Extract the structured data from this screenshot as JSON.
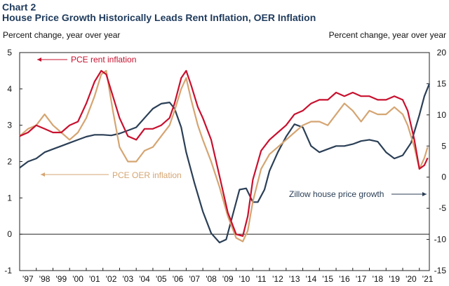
{
  "chart_title": "Chart 2",
  "chart_subtitle": "House Price Growth Historically Leads Rent Inflation, OER Inflation",
  "left_unit": "Percent change,  year over year",
  "right_unit": "Percent change,  year over year",
  "colors": {
    "title": "#1f3b5c",
    "rent": "#c8102e",
    "oer": "#d5a572",
    "zillow": "#2b3f56"
  },
  "chart_data": {
    "type": "line",
    "x_tick_labels": [
      "'97",
      "'98",
      "'99",
      "'00",
      "'01",
      "'02",
      "'03",
      "'04",
      "'05",
      "'06",
      "'07",
      "'08",
      "'09",
      "'10",
      "'11",
      "'12",
      "'13",
      "'14",
      "'15",
      "'16",
      "'17",
      "'18",
      "'19",
      "'20",
      "'21"
    ],
    "xlim": [
      1997,
      2021.6
    ],
    "left_axis": {
      "ylim": [
        -1,
        5
      ],
      "ticks": [
        -1,
        0,
        1,
        2,
        3,
        4,
        5
      ]
    },
    "right_axis": {
      "ylim": [
        -15,
        20
      ],
      "ticks": [
        -15,
        -10,
        -5,
        0,
        5,
        10,
        15,
        20
      ]
    },
    "annotations": [
      {
        "text": "PCE rent inflation",
        "series": "rent"
      },
      {
        "text": "PCE OER inflation",
        "series": "oer"
      },
      {
        "text": "Zillow house price growth",
        "series": "zillow"
      }
    ],
    "series": [
      {
        "key": "rent",
        "axis": "left",
        "x": [
          1997.0,
          1997.5,
          1998.0,
          1998.5,
          1999.0,
          1999.5,
          2000.0,
          2000.5,
          2001.0,
          2001.5,
          2001.9,
          2002.2,
          2002.6,
          2003.0,
          2003.5,
          2004.0,
          2004.5,
          2005.0,
          2005.5,
          2006.0,
          2006.3,
          2006.7,
          2007.0,
          2007.3,
          2007.7,
          2008.0,
          2008.5,
          2009.0,
          2009.5,
          2010.0,
          2010.4,
          2010.7,
          2011.0,
          2011.5,
          2012.0,
          2012.5,
          2013.0,
          2013.5,
          2014.0,
          2014.5,
          2015.0,
          2015.5,
          2016.0,
          2016.5,
          2017.0,
          2017.5,
          2018.0,
          2018.5,
          2019.0,
          2019.5,
          2020.0,
          2020.3,
          2020.7,
          2021.0,
          2021.3,
          2021.5
        ],
        "y": [
          2.7,
          2.8,
          3.0,
          2.9,
          2.8,
          2.8,
          3.0,
          3.1,
          3.6,
          4.2,
          4.5,
          4.4,
          3.8,
          3.2,
          2.7,
          2.6,
          2.9,
          2.9,
          3.0,
          3.2,
          3.6,
          4.3,
          4.5,
          4.1,
          3.5,
          3.2,
          2.6,
          1.6,
          0.6,
          0.0,
          -0.05,
          0.5,
          1.5,
          2.3,
          2.6,
          2.8,
          3.0,
          3.3,
          3.4,
          3.6,
          3.7,
          3.7,
          3.9,
          3.8,
          3.9,
          3.8,
          3.8,
          3.7,
          3.7,
          3.8,
          3.7,
          3.4,
          2.6,
          1.8,
          1.9,
          2.1
        ]
      },
      {
        "key": "oer",
        "axis": "left",
        "x": [
          1997.0,
          1997.5,
          1998.0,
          1998.5,
          1999.0,
          1999.5,
          2000.0,
          2000.5,
          2001.0,
          2001.5,
          2001.9,
          2002.2,
          2002.6,
          2003.0,
          2003.5,
          2004.0,
          2004.5,
          2005.0,
          2005.5,
          2006.0,
          2006.3,
          2006.7,
          2007.0,
          2007.3,
          2007.7,
          2008.0,
          2008.5,
          2009.0,
          2009.5,
          2010.0,
          2010.4,
          2010.7,
          2011.0,
          2011.5,
          2012.0,
          2012.5,
          2013.0,
          2013.5,
          2014.0,
          2014.5,
          2015.0,
          2015.5,
          2016.0,
          2016.5,
          2017.0,
          2017.5,
          2018.0,
          2018.5,
          2019.0,
          2019.5,
          2020.0,
          2020.3,
          2020.7,
          2021.0,
          2021.3,
          2021.5
        ],
        "y": [
          2.7,
          2.9,
          3.0,
          3.3,
          3.0,
          2.8,
          2.6,
          2.8,
          3.2,
          3.8,
          4.4,
          4.5,
          3.4,
          2.4,
          2.0,
          2.0,
          2.3,
          2.4,
          2.7,
          3.0,
          3.4,
          4.0,
          4.3,
          3.7,
          3.0,
          2.6,
          2.0,
          1.3,
          0.5,
          -0.1,
          -0.2,
          0.1,
          0.9,
          1.8,
          2.2,
          2.4,
          2.6,
          2.8,
          3.0,
          3.1,
          3.1,
          3.0,
          3.3,
          3.6,
          3.4,
          3.1,
          3.4,
          3.3,
          3.3,
          3.5,
          3.3,
          3.0,
          2.4,
          1.8,
          2.1,
          2.4
        ]
      },
      {
        "key": "zillow",
        "axis": "right",
        "x": [
          1997.0,
          1997.5,
          1998.0,
          1998.5,
          1999.0,
          1999.5,
          2000.0,
          2000.5,
          2001.0,
          2001.5,
          2002.0,
          2002.5,
          2003.0,
          2003.5,
          2004.0,
          2004.5,
          2005.0,
          2005.5,
          2006.0,
          2006.3,
          2006.7,
          2007.0,
          2007.5,
          2008.0,
          2008.5,
          2009.0,
          2009.4,
          2009.8,
          2010.2,
          2010.6,
          2011.0,
          2011.3,
          2011.7,
          2012.0,
          2012.5,
          2013.0,
          2013.5,
          2014.0,
          2014.5,
          2015.0,
          2015.5,
          2016.0,
          2016.5,
          2017.0,
          2017.5,
          2018.0,
          2018.5,
          2019.0,
          2019.5,
          2020.0,
          2020.5,
          2021.0,
          2021.3,
          2021.6
        ],
        "y": [
          1.5,
          2.5,
          3.0,
          4.0,
          4.5,
          5.0,
          5.5,
          6.0,
          6.5,
          6.8,
          6.8,
          6.7,
          7.0,
          7.5,
          8.0,
          9.5,
          11.0,
          11.8,
          12.0,
          11.0,
          8.0,
          4.0,
          -1.0,
          -5.5,
          -9.0,
          -10.5,
          -10.0,
          -6.0,
          -2.0,
          -1.8,
          -4.0,
          -4.0,
          -2.0,
          1.0,
          4.0,
          6.5,
          8.5,
          8.0,
          5.0,
          4.0,
          4.5,
          5.0,
          5.0,
          5.3,
          5.8,
          6.0,
          5.7,
          4.0,
          3.0,
          3.5,
          5.5,
          10.0,
          13.0,
          15.0
        ]
      }
    ]
  }
}
